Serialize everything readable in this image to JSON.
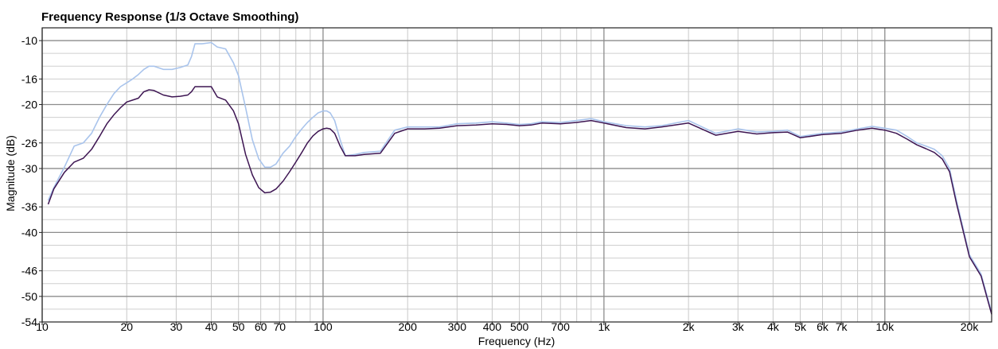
{
  "chart_data": {
    "type": "line",
    "title": "Frequency Response (1/3 Octave Smoothing)",
    "xlabel": "Frequency (Hz)",
    "ylabel": "Magnitude (dB)",
    "x_scale": "log",
    "xlim": [
      10,
      24000
    ],
    "ylim": [
      -54,
      -8
    ],
    "grid": true,
    "x_ticks": [
      {
        "v": 10,
        "label": "10"
      },
      {
        "v": 20,
        "label": "20"
      },
      {
        "v": 30,
        "label": "30"
      },
      {
        "v": 40,
        "label": "40"
      },
      {
        "v": 50,
        "label": "50"
      },
      {
        "v": 60,
        "label": "60"
      },
      {
        "v": 70,
        "label": "70"
      },
      {
        "v": 100,
        "label": "100"
      },
      {
        "v": 200,
        "label": "200"
      },
      {
        "v": 300,
        "label": "300"
      },
      {
        "v": 400,
        "label": "400"
      },
      {
        "v": 500,
        "label": "500"
      },
      {
        "v": 700,
        "label": "700"
      },
      {
        "v": 1000,
        "label": "1k"
      },
      {
        "v": 2000,
        "label": "2k"
      },
      {
        "v": 3000,
        "label": "3k"
      },
      {
        "v": 4000,
        "label": "4k"
      },
      {
        "v": 5000,
        "label": "5k"
      },
      {
        "v": 6000,
        "label": "6k"
      },
      {
        "v": 7000,
        "label": "7k"
      },
      {
        "v": 10000,
        "label": "10k"
      },
      {
        "v": 20000,
        "label": "20k"
      }
    ],
    "y_ticks": [
      {
        "v": -10,
        "label": "-10"
      },
      {
        "v": -16,
        "label": "-16"
      },
      {
        "v": -20,
        "label": "-20"
      },
      {
        "v": -26,
        "label": "-26"
      },
      {
        "v": -30,
        "label": "-30"
      },
      {
        "v": -36,
        "label": "-36"
      },
      {
        "v": -40,
        "label": "-40"
      },
      {
        "v": -46,
        "label": "-46"
      },
      {
        "v": -50,
        "label": "-50"
      },
      {
        "v": -54,
        "label": "-54"
      }
    ],
    "series": [
      {
        "color": "#a9c4ec",
        "x": [
          10.5,
          11,
          12,
          13,
          14,
          15,
          16,
          17,
          18,
          19,
          20,
          21,
          22,
          23,
          24,
          25,
          27,
          29,
          31,
          33,
          34,
          35,
          37,
          40,
          42,
          45,
          48,
          50,
          53,
          56,
          59,
          62,
          65,
          68,
          72,
          76,
          80,
          84,
          88,
          92,
          96,
          100,
          103,
          106,
          110,
          115,
          120,
          130,
          140,
          160,
          180,
          200,
          230,
          260,
          300,
          350,
          400,
          450,
          500,
          550,
          600,
          700,
          800,
          900,
          1000,
          1200,
          1400,
          1600,
          2000,
          2500,
          3000,
          3500,
          4000,
          4500,
          5000,
          6000,
          7000,
          8000,
          9000,
          10000,
          11000,
          12000,
          13000,
          14000,
          15000,
          16000,
          17000,
          18000,
          20000,
          22000,
          24000
        ],
        "y": [
          -35.0,
          -33.0,
          -29.8,
          -26.5,
          -26.0,
          -24.5,
          -22.0,
          -20.0,
          -18.3,
          -17.2,
          -16.6,
          -16.0,
          -15.3,
          -14.5,
          -14.0,
          -14.0,
          -14.5,
          -14.5,
          -14.2,
          -13.8,
          -12.5,
          -10.5,
          -10.5,
          -10.3,
          -11.0,
          -11.3,
          -13.5,
          -15.5,
          -20.5,
          -25.5,
          -28.5,
          -29.8,
          -29.8,
          -29.3,
          -27.6,
          -26.5,
          -25.0,
          -23.8,
          -22.8,
          -22.0,
          -21.3,
          -21.0,
          -21.0,
          -21.3,
          -22.5,
          -25.5,
          -28.0,
          -27.8,
          -27.5,
          -27.3,
          -24.0,
          -23.5,
          -23.5,
          -23.5,
          -23.0,
          -22.9,
          -22.7,
          -22.9,
          -23.1,
          -23.0,
          -22.7,
          -22.8,
          -22.5,
          -22.2,
          -22.7,
          -23.3,
          -23.5,
          -23.3,
          -22.5,
          -24.5,
          -23.8,
          -24.3,
          -24.2,
          -24.0,
          -25.0,
          -24.5,
          -24.3,
          -23.8,
          -23.4,
          -23.7,
          -24.0,
          -25.0,
          -26.0,
          -26.5,
          -27.0,
          -28.0,
          -30.0,
          -35.0,
          -43.5,
          -46.5,
          -52.5
        ]
      },
      {
        "color": "#3d1552",
        "x": [
          10.5,
          11,
          12,
          13,
          14,
          15,
          16,
          17,
          18,
          19,
          20,
          21,
          22,
          23,
          24,
          25,
          27,
          29,
          31,
          33,
          34,
          35,
          37,
          40,
          42,
          45,
          48,
          50,
          53,
          56,
          59,
          62,
          65,
          68,
          72,
          76,
          80,
          84,
          88,
          92,
          96,
          100,
          103,
          106,
          110,
          115,
          120,
          130,
          140,
          160,
          180,
          200,
          230,
          260,
          300,
          350,
          400,
          450,
          500,
          550,
          600,
          700,
          800,
          900,
          1000,
          1200,
          1400,
          1600,
          2000,
          2500,
          3000,
          3500,
          4000,
          4500,
          5000,
          6000,
          7000,
          8000,
          9000,
          10000,
          11000,
          12000,
          13000,
          14000,
          15000,
          16000,
          17000,
          18000,
          20000,
          22000,
          24000
        ],
        "y": [
          -35.6,
          -33.2,
          -30.6,
          -29.0,
          -28.4,
          -27.0,
          -25.0,
          -23.0,
          -21.6,
          -20.5,
          -19.6,
          -19.3,
          -19.0,
          -18.0,
          -17.7,
          -17.8,
          -18.5,
          -18.8,
          -18.7,
          -18.5,
          -18.0,
          -17.2,
          -17.2,
          -17.2,
          -18.8,
          -19.3,
          -21.0,
          -23.0,
          -27.8,
          -31.0,
          -33.0,
          -33.8,
          -33.7,
          -33.2,
          -32.0,
          -30.5,
          -29.0,
          -27.5,
          -26.0,
          -24.9,
          -24.2,
          -23.8,
          -23.7,
          -23.8,
          -24.5,
          -26.5,
          -28.0,
          -28.0,
          -27.8,
          -27.6,
          -24.5,
          -23.8,
          -23.8,
          -23.7,
          -23.3,
          -23.2,
          -23.0,
          -23.1,
          -23.3,
          -23.2,
          -22.9,
          -23.0,
          -22.8,
          -22.5,
          -22.9,
          -23.6,
          -23.8,
          -23.5,
          -22.9,
          -24.8,
          -24.2,
          -24.6,
          -24.4,
          -24.3,
          -25.2,
          -24.7,
          -24.5,
          -24.0,
          -23.7,
          -24.0,
          -24.5,
          -25.4,
          -26.3,
          -26.9,
          -27.5,
          -28.5,
          -30.5,
          -35.5,
          -43.8,
          -46.8,
          -52.8
        ]
      }
    ]
  }
}
